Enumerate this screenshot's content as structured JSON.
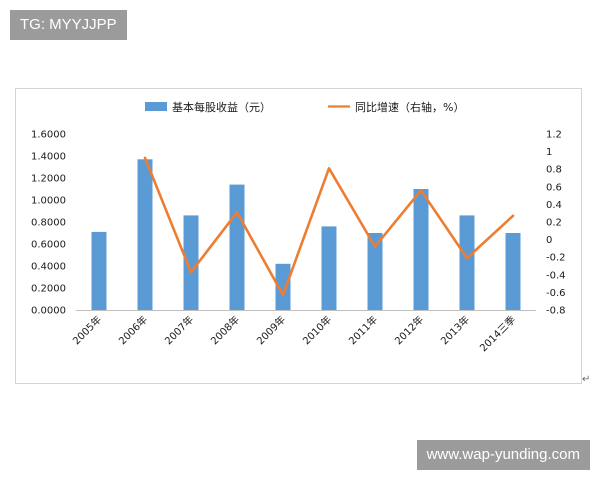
{
  "watermarks": {
    "top_left": "TG: MYYJJPP",
    "bottom_right": "www.wap-yunding.com"
  },
  "return_mark": "↵",
  "colors": {
    "bar": "#5b9bd5",
    "line": "#ed7d31",
    "axis": "#bfbfbf"
  },
  "chart_data": {
    "type": "bar",
    "title": "",
    "categories": [
      "2005年",
      "2006年",
      "2007年",
      "2008年",
      "2009年",
      "2010年",
      "2011年",
      "2012年",
      "2013年",
      "2014三季"
    ],
    "series": [
      {
        "name": "基本每股收益（元）",
        "type": "bar",
        "axis": "left",
        "values": [
          0.71,
          1.37,
          0.86,
          1.14,
          0.42,
          0.76,
          0.7,
          1.1,
          0.86,
          0.7
        ]
      },
      {
        "name": "同比增速（右轴，%）",
        "type": "line",
        "axis": "right",
        "values": [
          null,
          0.93,
          -0.37,
          0.31,
          -0.63,
          0.81,
          -0.08,
          0.56,
          -0.21,
          0.27
        ]
      }
    ],
    "y_left": {
      "lim": [
        0,
        1.6
      ],
      "ticks": [
        "1.6000",
        "1.4000",
        "1.2000",
        "1.0000",
        "0.8000",
        "0.6000",
        "0.4000",
        "0.2000",
        "0.0000"
      ]
    },
    "y_right": {
      "lim": [
        -0.8,
        1.2
      ],
      "ticks": [
        "1.2",
        "1",
        "0.8",
        "0.6",
        "0.4",
        "0.2",
        "0",
        "-0.2",
        "-0.4",
        "-0.6",
        "-0.8"
      ]
    },
    "grid": false,
    "legend_position": "top-center"
  }
}
